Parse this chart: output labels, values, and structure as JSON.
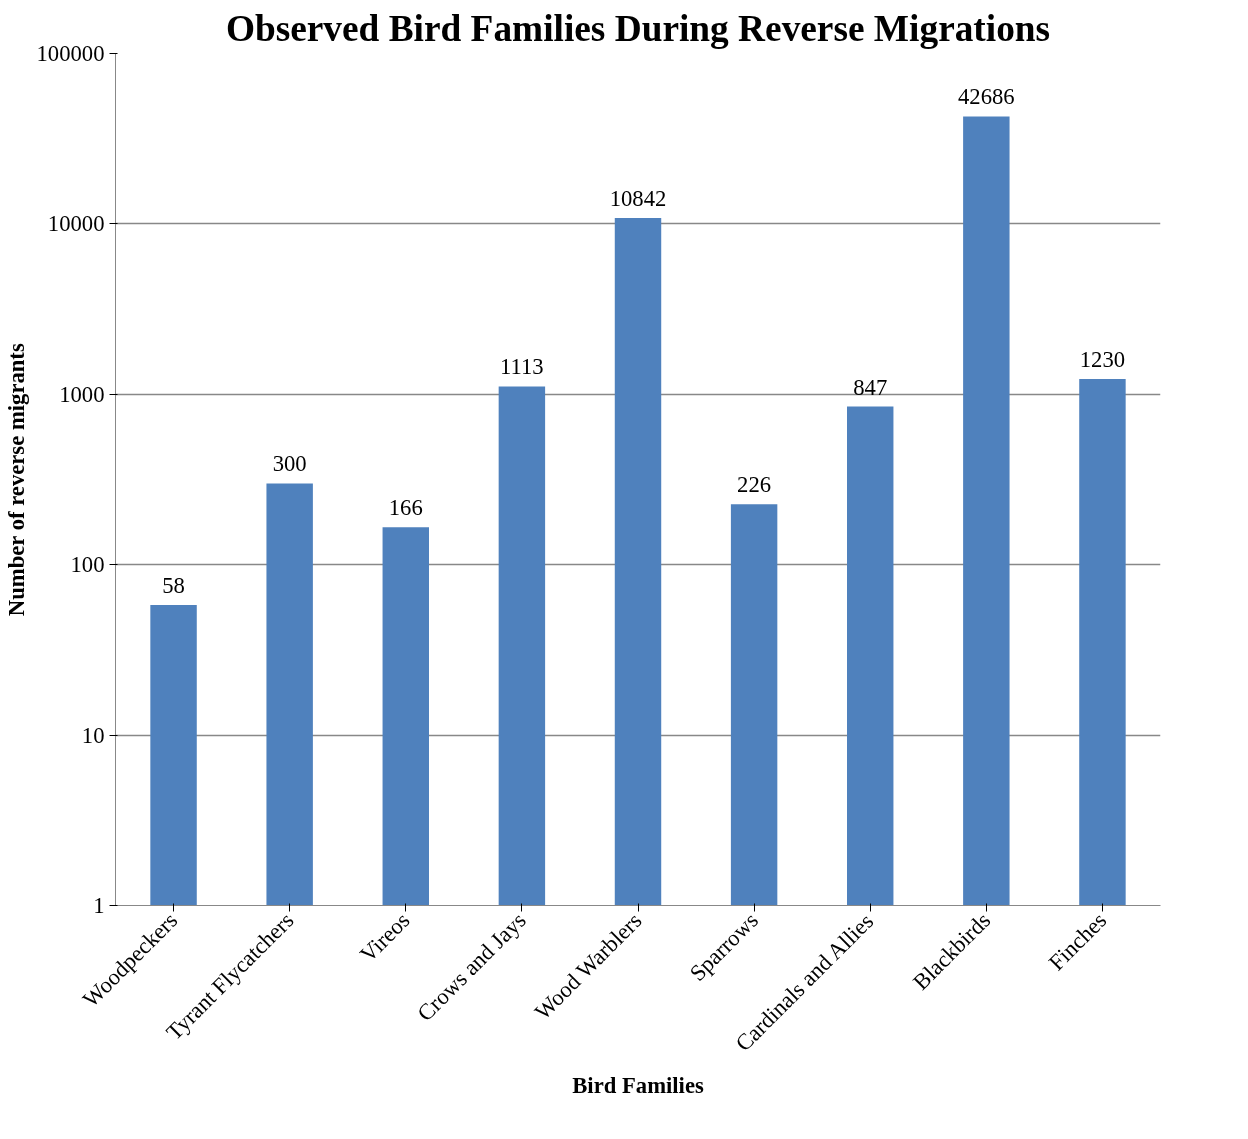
{
  "chart_data": {
    "type": "bar",
    "title": "Observed Bird Families During Reverse Migrations",
    "xlabel": "Bird Families",
    "ylabel": "Number of reverse migrants",
    "categories": [
      "Woodpeckers",
      "Tyrant Flycatchers",
      "Vireos",
      "Crows and Jays",
      "Wood Warblers",
      "Sparrows",
      "Cardinals and Allies",
      "Blackbirds",
      "Finches"
    ],
    "values": [
      58,
      300,
      166,
      1113,
      10842,
      226,
      847,
      42686,
      1230
    ],
    "color": "#4f81bd",
    "log": true,
    "ylim": [
      1,
      100000
    ],
    "yticks": [
      1,
      10,
      100,
      1000,
      10000,
      100000
    ],
    "grid": "y",
    "data_labels": true
  }
}
